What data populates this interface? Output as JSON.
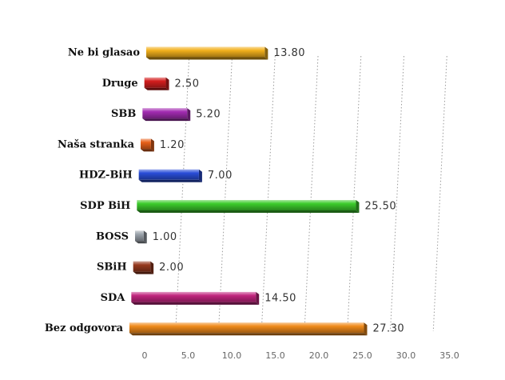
{
  "chart_data": {
    "type": "bar",
    "orientation": "horizontal",
    "title": "",
    "xlabel": "",
    "ylabel": "",
    "xlim": [
      0,
      35
    ],
    "x_ticks": [
      "0",
      "5.0",
      "10.0",
      "15.0",
      "20.0",
      "25.0",
      "30.0",
      "35.0"
    ],
    "grid": true,
    "legend": "none",
    "categories": [
      "Ne bi glasao",
      "Druge",
      "SBB",
      "Naša stranka",
      "HDZ-BiH",
      "SDP BiH",
      "BOSS",
      "SBiH",
      "SDA",
      "Bez odgovora"
    ],
    "values": [
      13.8,
      2.5,
      5.2,
      1.2,
      7.0,
      25.5,
      1.0,
      2.0,
      14.5,
      27.3
    ],
    "value_labels": [
      "13.80",
      "2.50",
      "5.20",
      "1.20",
      "7.00",
      "25.50",
      "1.00",
      "2.00",
      "14.50",
      "27.30"
    ],
    "colors": [
      "#f2b01c",
      "#d41e1e",
      "#a32cb2",
      "#e8601a",
      "#2a4ed8",
      "#3ccc2c",
      "#9aa2aa",
      "#96391e",
      "#c0257e",
      "#f08a1a"
    ]
  }
}
